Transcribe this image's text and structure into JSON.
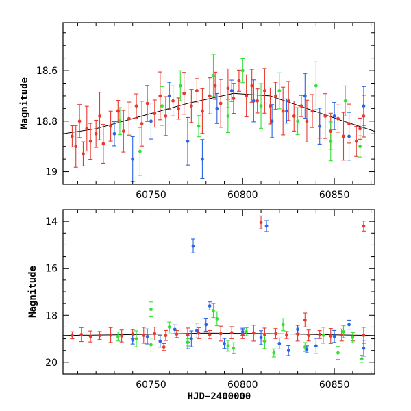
{
  "chart_data": [
    {
      "type": "scatter",
      "panel": "top",
      "xlabel": "",
      "ylabel": "Magnitude",
      "xlim": [
        60702,
        60872
      ],
      "ylim": [
        19.05,
        18.41
      ],
      "y_inverted": true,
      "xticks": [
        60750,
        60800,
        60850
      ],
      "yticks": [
        18.6,
        18.8,
        19
      ],
      "ytick_labels": [
        "18.6",
        "18.8",
        "19"
      ],
      "grid": false,
      "series": [
        {
          "color": "#e8392f",
          "points": [
            [
              60707,
              18.86
            ],
            [
              60709,
              18.9
            ],
            [
              60711,
              18.8
            ],
            [
              60713,
              18.93
            ],
            [
              60715,
              18.83
            ],
            [
              60717,
              18.88
            ],
            [
              60720,
              18.85
            ],
            [
              60722,
              18.78
            ],
            [
              60724,
              18.89
            ],
            [
              60728,
              18.82
            ],
            [
              60732,
              18.76
            ],
            [
              60735,
              18.84
            ],
            [
              60738,
              18.79
            ],
            [
              60742,
              18.74
            ],
            [
              60745,
              18.81
            ],
            [
              60748,
              18.73
            ],
            [
              60752,
              18.77
            ],
            [
              60755,
              18.7
            ],
            [
              60758,
              18.78
            ],
            [
              60762,
              18.72
            ],
            [
              60765,
              18.75
            ],
            [
              60768,
              18.69
            ],
            [
              60772,
              18.74
            ],
            [
              60775,
              18.68
            ],
            [
              60778,
              18.76
            ],
            [
              60782,
              18.7
            ],
            [
              60785,
              18.66
            ],
            [
              60788,
              18.73
            ],
            [
              60792,
              18.67
            ],
            [
              60795,
              18.71
            ],
            [
              60798,
              18.64
            ],
            [
              60802,
              18.7
            ],
            [
              60805,
              18.66
            ],
            [
              60808,
              18.72
            ],
            [
              60812,
              18.68
            ],
            [
              60815,
              18.74
            ],
            [
              60818,
              18.7
            ],
            [
              60822,
              18.76
            ],
            [
              60825,
              18.72
            ],
            [
              60828,
              18.78
            ],
            [
              60832,
              18.74
            ],
            [
              60835,
              18.8
            ],
            [
              60838,
              18.76
            ],
            [
              60842,
              18.82
            ],
            [
              60845,
              18.78
            ],
            [
              60848,
              18.84
            ],
            [
              60852,
              18.79
            ],
            [
              60855,
              18.86
            ],
            [
              60858,
              18.81
            ],
            [
              60862,
              18.88
            ],
            [
              60864,
              18.83
            ],
            [
              60866,
              18.78
            ]
          ]
        },
        {
          "color": "#2a64e8",
          "points": [
            [
              60730,
              18.85
            ],
            [
              60740,
              18.95
            ],
            [
              60750,
              18.8
            ],
            [
              60760,
              18.7
            ],
            [
              60770,
              18.88
            ],
            [
              60778,
              18.95
            ],
            [
              60786,
              18.75
            ],
            [
              60794,
              18.68
            ],
            [
              60806,
              18.72
            ],
            [
              60816,
              18.8
            ],
            [
              60824,
              18.76
            ],
            [
              60834,
              18.7
            ],
            [
              60842,
              18.82
            ],
            [
              60850,
              18.78
            ],
            [
              60858,
              18.86
            ],
            [
              60866,
              18.74
            ]
          ]
        },
        {
          "color": "#34e034",
          "points": [
            [
              60733,
              18.8
            ],
            [
              60744,
              18.92
            ],
            [
              60756,
              18.74
            ],
            [
              60766,
              18.66
            ],
            [
              60776,
              18.82
            ],
            [
              60784,
              18.62
            ],
            [
              60792,
              18.78
            ],
            [
              60800,
              18.6
            ],
            [
              60810,
              18.74
            ],
            [
              60820,
              18.68
            ],
            [
              60830,
              18.8
            ],
            [
              60840,
              18.66
            ],
            [
              60848,
              18.88
            ],
            [
              60856,
              18.72
            ],
            [
              60864,
              18.9
            ]
          ]
        }
      ],
      "trend": [
        [
          60702,
          18.85
        ],
        [
          60720,
          18.83
        ],
        [
          60745,
          18.78
        ],
        [
          60770,
          18.73
        ],
        [
          60795,
          18.69
        ],
        [
          60815,
          18.7
        ],
        [
          60835,
          18.75
        ],
        [
          60855,
          18.8
        ],
        [
          60872,
          18.84
        ]
      ]
    },
    {
      "type": "scatter",
      "panel": "bottom",
      "xlabel": "HJD−2400000",
      "ylabel": "Magnitude",
      "xlim": [
        60702,
        60872
      ],
      "ylim": [
        20.5,
        13.5
      ],
      "y_inverted": true,
      "xticks": [
        60750,
        60800,
        60850
      ],
      "yticks": [
        14,
        16,
        18,
        20
      ],
      "ytick_labels": [
        "14",
        "16",
        "18",
        "20"
      ],
      "grid": false,
      "series": [
        {
          "color": "#e8392f",
          "points": [
            [
              60707,
              18.85
            ],
            [
              60712,
              18.82
            ],
            [
              60717,
              18.9
            ],
            [
              60722,
              18.86
            ],
            [
              60728,
              18.84
            ],
            [
              60734,
              18.88
            ],
            [
              60740,
              18.8
            ],
            [
              60746,
              18.85
            ],
            [
              60752,
              18.78
            ],
            [
              60758,
              18.86
            ],
            [
              60764,
              18.8
            ],
            [
              60770,
              18.84
            ],
            [
              60776,
              18.76
            ],
            [
              60782,
              18.82
            ],
            [
              60788,
              18.78
            ],
            [
              60794,
              18.74
            ],
            [
              60800,
              18.8
            ],
            [
              60806,
              18.76
            ],
            [
              60812,
              18.82
            ],
            [
              60818,
              18.78
            ],
            [
              60824,
              18.84
            ],
            [
              60830,
              18.8
            ],
            [
              60836,
              18.86
            ],
            [
              60842,
              18.82
            ],
            [
              60848,
              18.88
            ],
            [
              60854,
              18.84
            ],
            [
              60860,
              18.9
            ],
            [
              60866,
              18.85
            ],
            [
              60810,
              14.05
            ],
            [
              60866,
              14.2
            ],
            [
              60757,
              19.35
            ],
            [
              60834,
              18.2
            ]
          ]
        },
        {
          "color": "#2a64e8",
          "points": [
            [
              60740,
              19.05
            ],
            [
              60748,
              18.9
            ],
            [
              60755,
              19.1
            ],
            [
              60763,
              18.6
            ],
            [
              60772,
              19.0
            ],
            [
              60780,
              18.4
            ],
            [
              60790,
              19.2
            ],
            [
              60800,
              18.7
            ],
            [
              60810,
              18.95
            ],
            [
              60820,
              19.2
            ],
            [
              60830,
              18.6
            ],
            [
              60840,
              19.3
            ],
            [
              60850,
              18.9
            ],
            [
              60858,
              18.4
            ],
            [
              60866,
              19.4
            ],
            [
              60770,
              19.15
            ],
            [
              60825,
              19.5
            ],
            [
              60835,
              19.45
            ],
            [
              60773,
              15.05
            ],
            [
              60813,
              14.2
            ],
            [
              60782,
              17.6
            ],
            [
              60775,
              18.65
            ]
          ]
        },
        {
          "color": "#34e034",
          "points": [
            [
              60732,
              18.9
            ],
            [
              60742,
              19.0
            ],
            [
              60750,
              19.25
            ],
            [
              60760,
              18.5
            ],
            [
              60770,
              19.15
            ],
            [
              60784,
              17.8
            ],
            [
              60792,
              19.3
            ],
            [
              60802,
              18.7
            ],
            [
              60812,
              19.1
            ],
            [
              60822,
              18.4
            ],
            [
              60834,
              19.35
            ],
            [
              60844,
              18.85
            ],
            [
              60852,
              19.6
            ],
            [
              60860,
              18.95
            ],
            [
              60865,
              19.85
            ],
            [
              60786,
              18.15
            ],
            [
              60795,
              19.4
            ],
            [
              60817,
              19.6
            ],
            [
              60750,
              17.75
            ],
            [
              60855,
              18.7
            ]
          ]
        }
      ],
      "trend": [
        [
          60702,
          18.86
        ],
        [
          60740,
          18.82
        ],
        [
          60780,
          18.76
        ],
        [
          60815,
          18.78
        ],
        [
          60850,
          18.83
        ],
        [
          60872,
          18.86
        ]
      ]
    }
  ]
}
